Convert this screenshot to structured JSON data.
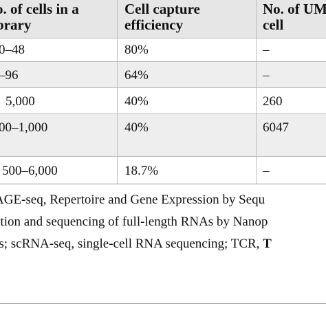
{
  "table": {
    "headers": [
      [
        "o. of cells in a",
        "brary"
      ],
      [
        "Cell capture",
        "efficiency"
      ],
      [
        "No. of UM",
        "cell"
      ]
    ],
    "rows": [
      [
        "0–48",
        "80%",
        "–"
      ],
      [
        "–96",
        "64%",
        "–"
      ],
      [
        "5,000",
        "40%",
        "260"
      ],
      [
        "00–1,000",
        "40%",
        "6047"
      ],
      [
        "500–6,000",
        "18.7%",
        "–"
      ]
    ]
  },
  "footnote": {
    "line1": "AGE-seq, Repertoire and Gene Expression by Sequ",
    "line2": "ation and sequencing of full-length RNAs by Nanop",
    "line3_text": "Is; scRNA-seq, single-cell RNA sequencing; TCR, ",
    "line3_bold": "T"
  }
}
